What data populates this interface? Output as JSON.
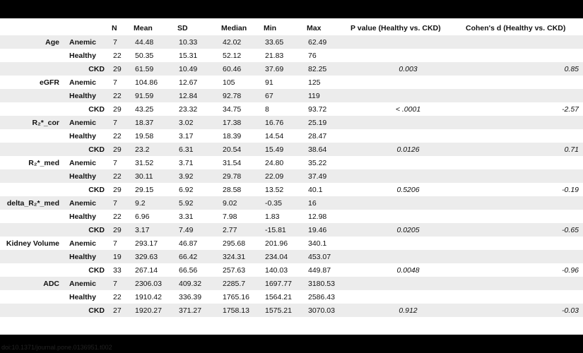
{
  "columns": [
    "",
    "",
    "N",
    "Mean",
    "SD",
    "Median",
    "Min",
    "Max",
    "P value (Healthy vs. CKD)",
    "Cohen's d (Healthy vs. CKD)"
  ],
  "rows": [
    [
      "Age",
      "Anemic",
      "7",
      "44.48",
      "10.33",
      "42.02",
      "33.65",
      "62.49",
      "",
      ""
    ],
    [
      "",
      "Healthy",
      "22",
      "50.35",
      "15.31",
      "52.12",
      "21.83",
      "76",
      "",
      ""
    ],
    [
      "",
      "CKD",
      "29",
      "61.59",
      "10.49",
      "60.46",
      "37.69",
      "82.25",
      "0.003",
      "0.85"
    ],
    [
      "eGFR",
      "Anemic",
      "7",
      "104.86",
      "12.67",
      "105",
      "91",
      "125",
      "",
      ""
    ],
    [
      "",
      "Healthy",
      "22",
      "91.59",
      "12.84",
      "92.78",
      "67",
      "119",
      "",
      ""
    ],
    [
      "",
      "CKD",
      "29",
      "43.25",
      "23.32",
      "34.75",
      "8",
      "93.72",
      "< .0001",
      "-2.57"
    ],
    [
      "R₂*_cor",
      "Anemic",
      "7",
      "18.37",
      "3.02",
      "17.38",
      "16.76",
      "25.19",
      "",
      ""
    ],
    [
      "",
      "Healthy",
      "22",
      "19.58",
      "3.17",
      "18.39",
      "14.54",
      "28.47",
      "",
      ""
    ],
    [
      "",
      "CKD",
      "29",
      "23.2",
      "6.31",
      "20.54",
      "15.49",
      "38.64",
      "0.0126",
      "0.71"
    ],
    [
      "R₂*_med",
      "Anemic",
      "7",
      "31.52",
      "3.71",
      "31.54",
      "24.80",
      "35.22",
      "",
      ""
    ],
    [
      "",
      "Healthy",
      "22",
      "30.11",
      "3.92",
      "29.78",
      "22.09",
      "37.49",
      "",
      ""
    ],
    [
      "",
      "CKD",
      "29",
      "29.15",
      "6.92",
      "28.58",
      "13.52",
      "40.1",
      "0.5206",
      "-0.19"
    ],
    [
      "delta_R₂*_med",
      "Anemic",
      "7",
      "9.2",
      "5.92",
      "9.02",
      "-0.35",
      "16",
      "",
      ""
    ],
    [
      "",
      "Healthy",
      "22",
      "6.96",
      "3.31",
      "7.98",
      "1.83",
      "12.98",
      "",
      ""
    ],
    [
      "",
      "CKD",
      "29",
      "3.17",
      "7.49",
      "2.77",
      "-15.81",
      "19.46",
      "0.0205",
      "-0.65"
    ],
    [
      "Kidney Volume",
      "Anemic",
      "7",
      "293.17",
      "46.87",
      "295.68",
      "201.96",
      "340.1",
      "",
      ""
    ],
    [
      "",
      "Healthy",
      "19",
      "329.63",
      "66.42",
      "324.31",
      "234.04",
      "453.07",
      "",
      ""
    ],
    [
      "",
      "CKD",
      "33",
      "267.14",
      "66.56",
      "257.63",
      "140.03",
      "449.87",
      "0.0048",
      "-0.96"
    ],
    [
      "ADC",
      "Anemic",
      "7",
      "2306.03",
      "409.32",
      "2285.7",
      "1697.77",
      "3180.53",
      "",
      ""
    ],
    [
      "",
      "Healthy",
      "22",
      "1910.42",
      "336.39",
      "1765.16",
      "1564.21",
      "2586.43",
      "",
      ""
    ],
    [
      "",
      "CKD",
      "27",
      "1920.27",
      "371.27",
      "1758.13",
      "1575.21",
      "3070.03",
      "0.912",
      "-0.03"
    ]
  ],
  "doi": "doi:10.1371/journal.pone.0136951.t002"
}
